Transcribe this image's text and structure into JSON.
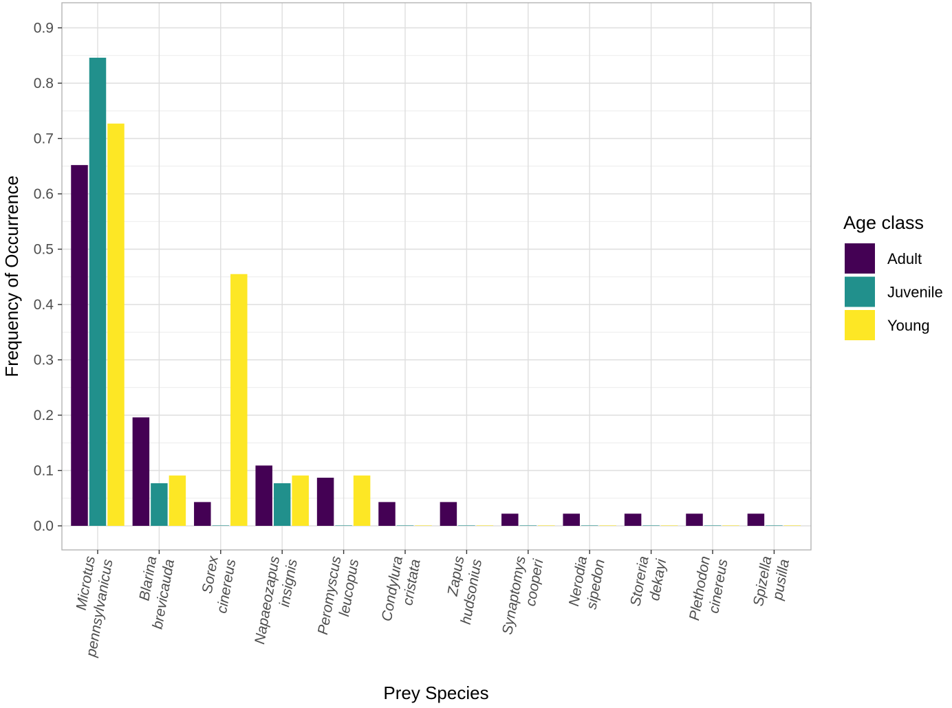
{
  "chart_data": {
    "type": "bar",
    "xlabel": "Prey Species",
    "ylabel": "Frequency of Occurrence",
    "ylim": [
      -0.043,
      0.945
    ],
    "y_ticks": [
      "0.0",
      "0.1",
      "0.2",
      "0.3",
      "0.4",
      "0.5",
      "0.6",
      "0.7",
      "0.8",
      "0.9"
    ],
    "grid": true,
    "legend": {
      "title": "Age class",
      "position": "right"
    },
    "categories": [
      [
        "Microtus",
        "pennsylvanicus"
      ],
      [
        "Blarina",
        "brevicauda"
      ],
      [
        "Sorex",
        "cinereus"
      ],
      [
        "Napaeozapus",
        "insignis"
      ],
      [
        "Peromyscus",
        "leucopus"
      ],
      [
        "Condylura",
        "cristata"
      ],
      [
        "Zapus",
        "hudsonius"
      ],
      [
        "Synaptomys",
        "cooperi"
      ],
      [
        "Nerodia",
        "sipedon"
      ],
      [
        "Storeria",
        "dekayi"
      ],
      [
        "Plethodon",
        "cinereus"
      ],
      [
        "Spizella",
        "pusilla"
      ]
    ],
    "series": [
      {
        "name": "Adult",
        "color": "#440154",
        "values": [
          0.652,
          0.196,
          0.043,
          0.109,
          0.087,
          0.043,
          0.043,
          0.022,
          0.022,
          0.022,
          0.022,
          0.022
        ]
      },
      {
        "name": "Juvenile",
        "color": "#21908C",
        "values": [
          0.846,
          0.077,
          0.0,
          0.077,
          0.0,
          0.0,
          0.0,
          0.0,
          0.0,
          0.0,
          0.0,
          0.0
        ]
      },
      {
        "name": "Young",
        "color": "#FDE725",
        "values": [
          0.727,
          0.091,
          0.455,
          0.091,
          0.091,
          0.0,
          0.0,
          0.0,
          0.0,
          0.0,
          0.0,
          0.0
        ]
      }
    ]
  }
}
